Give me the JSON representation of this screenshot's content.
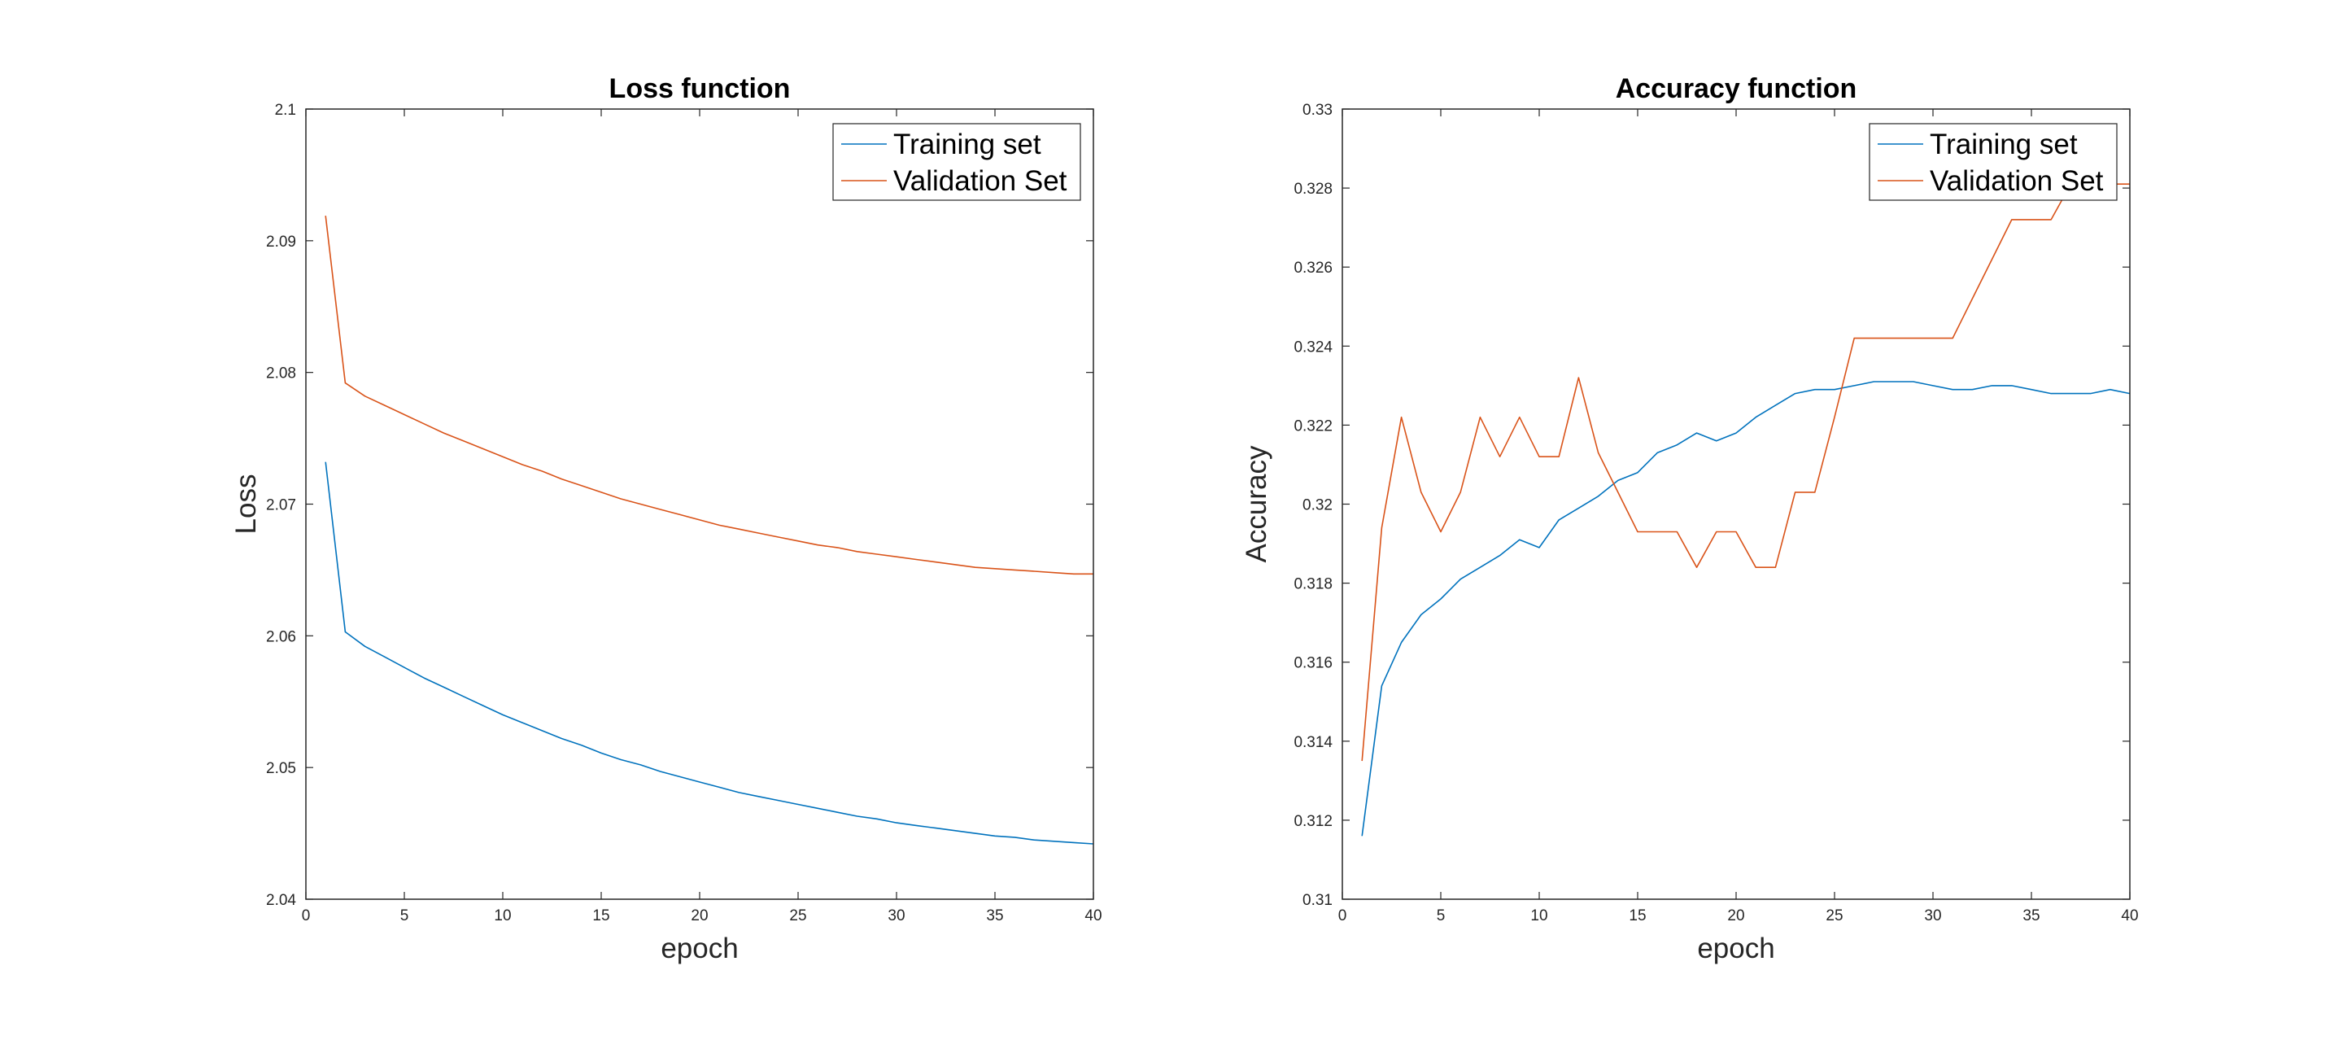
{
  "chart_data": [
    {
      "type": "line",
      "title": "Loss function",
      "xlabel": "epoch",
      "ylabel": "Loss",
      "xlim": [
        0,
        40
      ],
      "ylim": [
        2.04,
        2.1
      ],
      "xticks": [
        0,
        5,
        10,
        15,
        20,
        25,
        30,
        35,
        40
      ],
      "xtick_labels": [
        "0",
        "5",
        "10",
        "15",
        "20",
        "25",
        "30",
        "35",
        "40"
      ],
      "yticks": [
        2.04,
        2.05,
        2.06,
        2.07,
        2.08,
        2.09,
        2.1
      ],
      "ytick_labels": [
        "2.04",
        "2.05",
        "2.06",
        "2.07",
        "2.08",
        "2.09",
        "2.1"
      ],
      "grid": false,
      "legend_position": "top-right",
      "x": [
        1,
        2,
        3,
        4,
        5,
        6,
        7,
        8,
        9,
        10,
        11,
        12,
        13,
        14,
        15,
        16,
        17,
        18,
        19,
        20,
        21,
        22,
        23,
        24,
        25,
        26,
        27,
        28,
        29,
        30,
        31,
        32,
        33,
        34,
        35,
        36,
        37,
        38,
        39,
        40
      ],
      "series": [
        {
          "name": "Training set",
          "color": "#0072BD",
          "values": [
            2.0732,
            2.0603,
            2.0592,
            2.0584,
            2.0576,
            2.0568,
            2.0561,
            2.0554,
            2.0547,
            2.054,
            2.0534,
            2.0528,
            2.0522,
            2.0517,
            2.0511,
            2.0506,
            2.0502,
            2.0497,
            2.0493,
            2.0489,
            2.0485,
            2.0481,
            2.0478,
            2.0475,
            2.0472,
            2.0469,
            2.0466,
            2.0463,
            2.0461,
            2.0458,
            2.0456,
            2.0454,
            2.0452,
            2.045,
            2.0448,
            2.0447,
            2.0445,
            2.0444,
            2.0443,
            2.0442
          ]
        },
        {
          "name": "Validation Set",
          "color": "#D95319",
          "values": [
            2.0919,
            2.0792,
            2.0782,
            2.0775,
            2.0768,
            2.0761,
            2.0754,
            2.0748,
            2.0742,
            2.0736,
            2.073,
            2.0725,
            2.0719,
            2.0714,
            2.0709,
            2.0704,
            2.07,
            2.0696,
            2.0692,
            2.0688,
            2.0684,
            2.0681,
            2.0678,
            2.0675,
            2.0672,
            2.0669,
            2.0667,
            2.0664,
            2.0662,
            2.066,
            2.0658,
            2.0656,
            2.0654,
            2.0652,
            2.0651,
            2.065,
            2.0649,
            2.0648,
            2.0647,
            2.0647
          ]
        }
      ]
    },
    {
      "type": "line",
      "title": "Accuracy function",
      "xlabel": "epoch",
      "ylabel": "Accuracy",
      "xlim": [
        0,
        40
      ],
      "ylim": [
        0.31,
        0.33
      ],
      "xticks": [
        0,
        5,
        10,
        15,
        20,
        25,
        30,
        35,
        40
      ],
      "xtick_labels": [
        "0",
        "5",
        "10",
        "15",
        "20",
        "25",
        "30",
        "35",
        "40"
      ],
      "yticks": [
        0.31,
        0.312,
        0.314,
        0.316,
        0.318,
        0.32,
        0.322,
        0.324,
        0.326,
        0.328,
        0.33
      ],
      "ytick_labels": [
        "0.31",
        "0.312",
        "0.314",
        "0.316",
        "0.318",
        "0.32",
        "0.322",
        "0.324",
        "0.326",
        "0.328",
        "0.33"
      ],
      "grid": false,
      "legend_position": "top-right",
      "x": [
        1,
        2,
        3,
        4,
        5,
        6,
        7,
        8,
        9,
        10,
        11,
        12,
        13,
        14,
        15,
        16,
        17,
        18,
        19,
        20,
        21,
        22,
        23,
        24,
        25,
        26,
        27,
        28,
        29,
        30,
        31,
        32,
        33,
        34,
        35,
        36,
        37,
        38,
        39,
        40
      ],
      "series": [
        {
          "name": "Training set",
          "color": "#0072BD",
          "values": [
            0.3116,
            0.3154,
            0.3165,
            0.3172,
            0.3176,
            0.3181,
            0.3184,
            0.3187,
            0.3191,
            0.3189,
            0.3196,
            0.3199,
            0.3202,
            0.3206,
            0.3208,
            0.3213,
            0.3215,
            0.3218,
            0.3216,
            0.3218,
            0.3222,
            0.3225,
            0.3228,
            0.3229,
            0.3229,
            0.323,
            0.3231,
            0.3231,
            0.3231,
            0.323,
            0.3229,
            0.3229,
            0.323,
            0.323,
            0.3229,
            0.3228,
            0.3228,
            0.3228,
            0.3229,
            0.3228
          ]
        },
        {
          "name": "Validation Set",
          "color": "#D95319",
          "values": [
            0.3135,
            0.3194,
            0.3222,
            0.3203,
            0.3193,
            0.3203,
            0.3222,
            0.3212,
            0.3222,
            0.3212,
            0.3212,
            0.3232,
            0.3213,
            0.3203,
            0.3193,
            0.3193,
            0.3193,
            0.3184,
            0.3193,
            0.3193,
            0.3184,
            0.3184,
            0.3203,
            0.3203,
            0.3222,
            0.3242,
            0.3242,
            0.3242,
            0.3242,
            0.3242,
            0.3242,
            0.3252,
            0.3262,
            0.3272,
            0.3272,
            0.3272,
            0.3281,
            0.3281,
            0.3281,
            0.3281
          ]
        }
      ]
    }
  ]
}
